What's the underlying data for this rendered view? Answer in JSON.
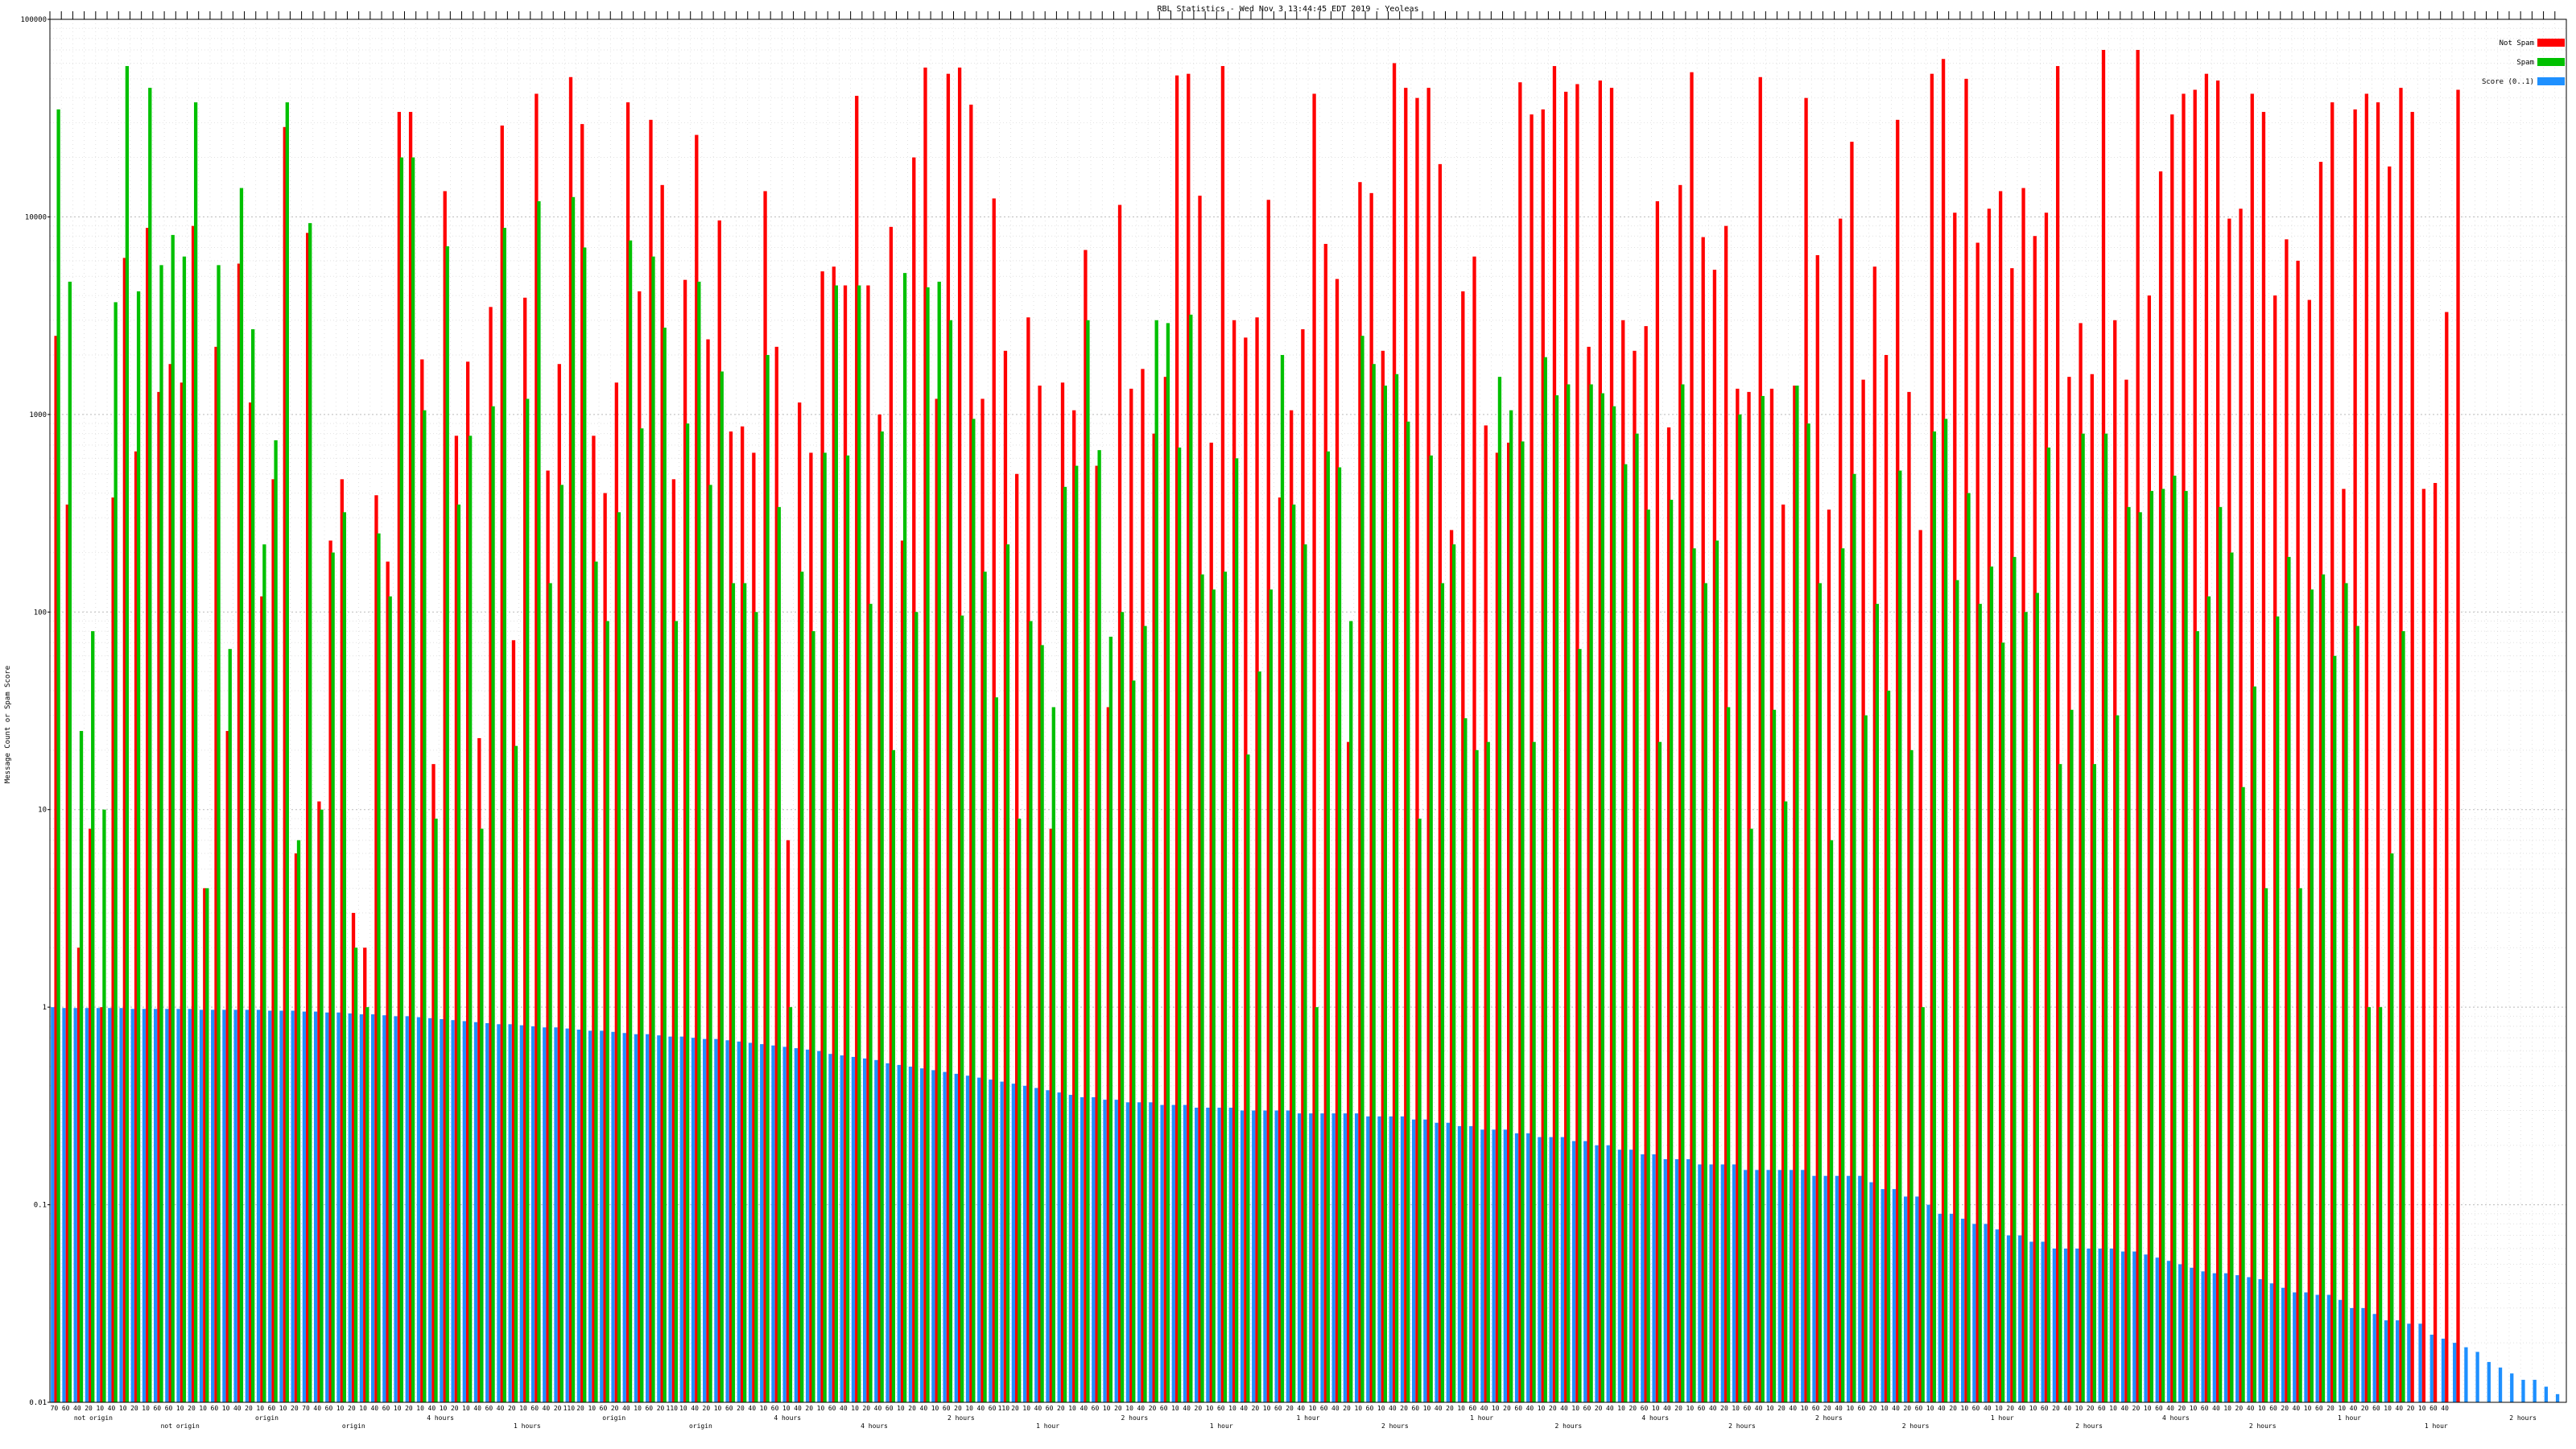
{
  "chart_data": {
    "type": "bar",
    "scale": "log",
    "title": "RBL Statistics - Wed Nov  3 13:44:45 EDT 2019 - Yeoleas",
    "ylabel": "Message Count or Spam Score",
    "ylim": [
      0.01,
      100000
    ],
    "grid": true,
    "legend_placement": "top-right",
    "y_ticks": [
      "0.01",
      "0.1",
      "1",
      "10",
      "100",
      "1000",
      "10000",
      "100000"
    ],
    "colors": {
      "not_spam": "#ff0000",
      "spam": "#00c000",
      "score": "#1e90ff"
    },
    "legend": [
      {
        "label": "Not Spam",
        "color": "#ff0000"
      },
      {
        "label": "Spam",
        "color": "#00c000"
      },
      {
        "label": "Score (0..1)",
        "color": "#1e90ff"
      }
    ],
    "x_tick_labels": [
      "70",
      "60",
      "40",
      "20",
      "10",
      "40",
      "10",
      "20",
      "10",
      "60",
      "60",
      "10",
      "20",
      "10",
      "60",
      "10",
      "40",
      "20",
      "10",
      "60",
      "10",
      "20",
      "70",
      "40",
      "60",
      "10",
      "20",
      "10",
      "40",
      "60",
      "10",
      "20",
      "10",
      "40",
      "10",
      "20",
      "10",
      "40",
      "60",
      "40",
      "20",
      "10",
      "60",
      "40",
      "20",
      "110",
      "20",
      "10",
      "60",
      "20",
      "40",
      "10",
      "60",
      "20",
      "110",
      "10",
      "40",
      "20",
      "10",
      "60",
      "20",
      "40",
      "10",
      "60",
      "10",
      "40",
      "20",
      "10",
      "60",
      "40",
      "10",
      "20",
      "40",
      "60",
      "10",
      "20",
      "40",
      "10",
      "60",
      "20",
      "10",
      "40",
      "60",
      "110",
      "20",
      "10",
      "40",
      "60",
      "20",
      "10",
      "40",
      "60",
      "10",
      "20",
      "10",
      "40",
      "20",
      "60",
      "10",
      "40",
      "20",
      "10",
      "60",
      "10",
      "40",
      "20",
      "10",
      "60",
      "20",
      "40",
      "10",
      "60",
      "40",
      "20",
      "10",
      "60",
      "10",
      "40",
      "20",
      "60",
      "10",
      "40",
      "20",
      "10",
      "60",
      "40",
      "10",
      "20",
      "60",
      "40",
      "10",
      "20",
      "40",
      "10",
      "60",
      "20",
      "40",
      "10",
      "20",
      "60",
      "10",
      "40",
      "20",
      "10",
      "60",
      "40",
      "20",
      "10",
      "60",
      "40",
      "10",
      "20",
      "40",
      "10",
      "60",
      "20",
      "40",
      "10",
      "60",
      "20",
      "10",
      "40",
      "20",
      "60",
      "10",
      "40",
      "20",
      "10",
      "60",
      "40",
      "10",
      "20",
      "40",
      "10",
      "60",
      "20",
      "40",
      "10",
      "20",
      "60",
      "10",
      "40",
      "20",
      "10",
      "60",
      "40",
      "20",
      "10",
      "60",
      "40",
      "10",
      "20",
      "40",
      "10",
      "60",
      "20",
      "40",
      "10",
      "60",
      "20",
      "10",
      "40",
      "20",
      "60",
      "10",
      "40",
      "20",
      "10",
      "60",
      "40"
    ],
    "x_sub_labels": [
      "not origin",
      "not origin",
      "origin",
      "origin",
      "4 hours",
      "1 hours",
      "origin",
      "origin",
      "4 hours",
      "4 hours",
      "2 hours",
      "1 hour",
      "2 hours",
      "1 hour",
      "1 hour",
      "2 hours",
      "1 hour",
      "2 hours",
      "4 hours",
      "2 hours",
      "2 hours",
      "2 hours",
      "1 hour",
      "2 hours",
      "4 hours",
      "2 hours",
      "1 hour",
      "1 hour",
      "2 hours"
    ],
    "not_spam": [
      2500,
      350,
      2,
      8,
      1,
      380,
      6200,
      650,
      8800,
      1300,
      1800,
      1450,
      9000,
      4,
      2200,
      25,
      5800,
      1150,
      120,
      470,
      28500,
      6,
      8300,
      11,
      230,
      470,
      3,
      2,
      390,
      180,
      34000,
      34000,
      1900,
      17,
      13500,
      780,
      1850,
      23,
      3500,
      29000,
      72,
      3900,
      42000,
      520,
      1800,
      51000,
      29500,
      780,
      400,
      1450,
      38000,
      4200,
      31000,
      14500,
      470,
      4800,
      26000,
      2400,
      9600,
      820,
      870,
      640,
      13500,
      2200,
      7,
      1150,
      640,
      5300,
      5600,
      4500,
      41000,
      4500,
      1000,
      8900,
      230,
      20000,
      57000,
      1200,
      53000,
      57000,
      37000,
      1200,
      12400,
      2100,
      500,
      3100,
      1400,
      8,
      1450,
      1050,
      6800,
      550,
      33,
      11500,
      1350,
      1700,
      800,
      1550,
      52000,
      53000,
      12800,
      720,
      58000,
      3000,
      2450,
      3100,
      12200,
      380,
      1050,
      2700,
      42000,
      7300,
      4850,
      22,
      15000,
      13200,
      2100,
      60000,
      45000,
      40000,
      45000,
      18500,
      260,
      4200,
      6300,
      880,
      640,
      720,
      48000,
      33000,
      35000,
      58000,
      43000,
      47000,
      2200,
      49000,
      45000,
      3000,
      2100,
      2800,
      12000,
      860,
      14500,
      54000,
      7900,
      5400,
      9000,
      1350,
      1300,
      51000,
      1350,
      350,
      1400,
      40000,
      6400,
      330,
      9800,
      24000,
      1500,
      5600,
      2000,
      31000,
      1300,
      260,
      53000,
      63000,
      10500,
      50000,
      7400,
      11000,
      13500,
      5500,
      14000,
      8000,
      10500,
      58000,
      1550,
      2900,
      1600,
      70000,
      3000,
      1500,
      70000,
      4000,
      17000,
      33000,
      42000,
      44000,
      53000,
      49000,
      9800,
      11000,
      42000,
      34000,
      4000,
      7700,
      6000,
      3800,
      19000,
      38000,
      420,
      35000,
      42000,
      38000,
      18000,
      45000,
      34000,
      420,
      450,
      3300,
      44000
    ],
    "spam": [
      35000,
      4700,
      25,
      80,
      10,
      3700,
      58000,
      4200,
      45000,
      5700,
      8100,
      6300,
      38000,
      4,
      5700,
      65,
      14000,
      2700,
      220,
      740,
      38000,
      7,
      9300,
      10,
      200,
      320,
      2,
      1,
      250,
      120,
      20000,
      20000,
      1050,
      9,
      7100,
      350,
      780,
      8,
      1100,
      8800,
      21,
      1200,
      12000,
      140,
      440,
      12600,
      7000,
      180,
      90,
      320,
      7600,
      850,
      6300,
      2750,
      90,
      900,
      4700,
      440,
      1650,
      140,
      140,
      100,
      2000,
      340,
      1,
      160,
      80,
      640,
      4500,
      620,
      4500,
      110,
      820,
      20,
      5200,
      100,
      4400,
      4700,
      3000,
      96,
      950,
      160,
      37,
      220,
      9,
      90,
      68,
      33,
      430,
      550,
      3000,
      660,
      75,
      100,
      45,
      85,
      3000,
      2900,
      680,
      3200,
      155,
      130,
      160,
      600,
      19,
      50,
      130,
      2000,
      350,
      220,
      1,
      650,
      540,
      90,
      2500,
      1800,
      1400,
      1600,
      920,
      9,
      620,
      140,
      220,
      29,
      20,
      22,
      1550,
      1050,
      730,
      22,
      1950,
      1250,
      1420,
      65,
      1420,
      1280,
      1100,
      560,
      800,
      330,
      22,
      370,
      1420,
      210,
      140,
      230,
      33,
      1000,
      8,
      1240,
      32,
      11,
      1400,
      900,
      140,
      7,
      210,
      500,
      30,
      110,
      40,
      520,
      20,
      1,
      820,
      950,
      145,
      400,
      110,
      170,
      70,
      190,
      100,
      125,
      680,
      17,
      32,
      800,
      17,
      800,
      30,
      340,
      320,
      410,
      420,
      490,
      410,
      80,
      120,
      340,
      200,
      13,
      42,
      4,
      95,
      190,
      4,
      130,
      155,
      60,
      140,
      85,
      1,
      1,
      6,
      80
    ],
    "score": [
      1.0,
      0.99,
      0.99,
      0.99,
      0.99,
      0.99,
      0.99,
      0.98,
      0.98,
      0.98,
      0.98,
      0.98,
      0.98,
      0.97,
      0.97,
      0.97,
      0.97,
      0.97,
      0.97,
      0.96,
      0.96,
      0.96,
      0.95,
      0.95,
      0.94,
      0.94,
      0.93,
      0.92,
      0.92,
      0.91,
      0.9,
      0.9,
      0.89,
      0.88,
      0.87,
      0.86,
      0.85,
      0.84,
      0.83,
      0.82,
      0.82,
      0.81,
      0.8,
      0.79,
      0.79,
      0.78,
      0.77,
      0.76,
      0.76,
      0.75,
      0.74,
      0.73,
      0.73,
      0.72,
      0.71,
      0.71,
      0.7,
      0.69,
      0.69,
      0.68,
      0.67,
      0.66,
      0.65,
      0.64,
      0.63,
      0.62,
      0.61,
      0.6,
      0.58,
      0.57,
      0.56,
      0.55,
      0.54,
      0.52,
      0.51,
      0.5,
      0.49,
      0.48,
      0.47,
      0.46,
      0.45,
      0.44,
      0.43,
      0.42,
      0.41,
      0.4,
      0.39,
      0.38,
      0.37,
      0.36,
      0.35,
      0.35,
      0.34,
      0.34,
      0.33,
      0.33,
      0.33,
      0.32,
      0.32,
      0.32,
      0.31,
      0.31,
      0.31,
      0.31,
      0.3,
      0.3,
      0.3,
      0.3,
      0.3,
      0.29,
      0.29,
      0.29,
      0.29,
      0.29,
      0.29,
      0.28,
      0.28,
      0.28,
      0.28,
      0.27,
      0.27,
      0.26,
      0.26,
      0.25,
      0.25,
      0.24,
      0.24,
      0.24,
      0.23,
      0.23,
      0.22,
      0.22,
      0.22,
      0.21,
      0.21,
      0.2,
      0.2,
      0.19,
      0.19,
      0.18,
      0.18,
      0.17,
      0.17,
      0.17,
      0.16,
      0.16,
      0.16,
      0.16,
      0.15,
      0.15,
      0.15,
      0.15,
      0.15,
      0.15,
      0.14,
      0.14,
      0.14,
      0.14,
      0.14,
      0.13,
      0.12,
      0.12,
      0.11,
      0.11,
      0.1,
      0.09,
      0.09,
      0.085,
      0.08,
      0.08,
      0.075,
      0.07,
      0.07,
      0.065,
      0.065,
      0.06,
      0.06,
      0.06,
      0.06,
      0.06,
      0.06,
      0.058,
      0.058,
      0.056,
      0.054,
      0.052,
      0.05,
      0.048,
      0.046,
      0.045,
      0.045,
      0.044,
      0.043,
      0.042,
      0.04,
      0.038,
      0.036,
      0.036,
      0.035,
      0.035,
      0.033,
      0.03,
      0.03,
      0.028,
      0.026,
      0.026,
      0.025,
      0.025,
      0.022,
      0.021,
      0.02,
      0.019,
      0.018,
      0.016,
      0.015,
      0.014,
      0.013,
      0.013,
      0.012,
      0.011
    ]
  }
}
